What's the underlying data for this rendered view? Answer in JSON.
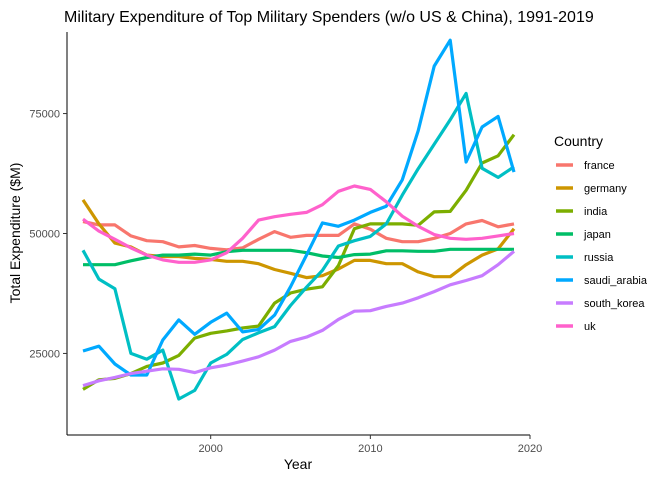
{
  "chart_data": {
    "type": "line",
    "title": "Military Expenditure of Top Military Spenders (w/o US & China), 1991-2019",
    "xlabel": "Year",
    "ylabel": "Total Expenditure ($M)",
    "xlim": [
      1991,
      2020
    ],
    "ylim": [
      8000,
      92000
    ],
    "xticks": [
      2000,
      2010,
      2020
    ],
    "yticks": [
      25000,
      50000,
      75000
    ],
    "grid": false,
    "legend": {
      "title": "Country",
      "position": "right"
    },
    "x": [
      1992,
      1993,
      1994,
      1995,
      1996,
      1997,
      1998,
      1999,
      2000,
      2001,
      2002,
      2003,
      2004,
      2005,
      2006,
      2007,
      2008,
      2009,
      2010,
      2011,
      2012,
      2013,
      2014,
      2015,
      2016,
      2017,
      2018,
      2019
    ],
    "series": [
      {
        "name": "france",
        "color": "#F8766D",
        "values": [
          52500,
          51800,
          51800,
          49500,
          48500,
          48300,
          47200,
          47500,
          46900,
          46600,
          47000,
          48800,
          50400,
          49200,
          49600,
          49600,
          49600,
          52000,
          50900,
          49000,
          48300,
          48300,
          49000,
          50000,
          52000,
          52700,
          51400,
          52000
        ]
      },
      {
        "name": "germany",
        "color": "#CD9600",
        "values": [
          57000,
          52000,
          48000,
          47200,
          45500,
          45200,
          45200,
          44800,
          44600,
          44200,
          44200,
          43700,
          42500,
          41700,
          40800,
          41200,
          42600,
          44400,
          44400,
          43700,
          43700,
          42000,
          41000,
          41000,
          43500,
          45500,
          46800,
          51000
        ]
      },
      {
        "name": "india",
        "color": "#7CAE00",
        "values": [
          17500,
          19500,
          19800,
          20800,
          22300,
          23000,
          24600,
          28200,
          29200,
          29700,
          30300,
          30700,
          35500,
          37600,
          38400,
          38900,
          43300,
          51000,
          52000,
          52000,
          52000,
          51700,
          54500,
          54600,
          59000,
          64700,
          66200,
          70600
        ]
      },
      {
        "name": "japan",
        "color": "#00BE67",
        "values": [
          43500,
          43500,
          43500,
          44300,
          45000,
          45500,
          45500,
          45700,
          45500,
          46200,
          46500,
          46500,
          46500,
          46500,
          46000,
          45300,
          45000,
          45600,
          45700,
          46400,
          46400,
          46300,
          46300,
          46700,
          46700,
          46700,
          46700,
          46700
        ]
      },
      {
        "name": "russia",
        "color": "#00BFC4",
        "values": [
          46500,
          40500,
          38500,
          25000,
          23800,
          25700,
          15500,
          17300,
          23000,
          24800,
          27900,
          29300,
          30600,
          35000,
          38800,
          42300,
          47400,
          48500,
          49400,
          52000,
          58000,
          63500,
          68600,
          73700,
          79200,
          63600,
          61700,
          63900
        ]
      },
      {
        "name": "saudi_arabia",
        "color": "#00A9FF",
        "values": [
          25500,
          26500,
          22800,
          20500,
          20500,
          27800,
          32000,
          29000,
          31500,
          33400,
          29500,
          30000,
          33000,
          38900,
          45500,
          52200,
          51500,
          52800,
          54400,
          55700,
          61200,
          71400,
          84900,
          90300,
          64900,
          72200,
          74400,
          62800
        ]
      },
      {
        "name": "south_korea",
        "color": "#C77CFF",
        "values": [
          18300,
          19300,
          20000,
          20800,
          21300,
          21800,
          21700,
          21000,
          22000,
          22600,
          23400,
          24300,
          25700,
          27500,
          28400,
          29800,
          32100,
          33800,
          33900,
          34800,
          35500,
          36600,
          37900,
          39300,
          40200,
          41200,
          43500,
          46300
        ]
      },
      {
        "name": "uk",
        "color": "#FF61CC",
        "values": [
          53000,
          50500,
          48800,
          47000,
          45500,
          44500,
          44000,
          44000,
          44500,
          46000,
          49000,
          52800,
          53500,
          54000,
          54400,
          56000,
          58800,
          59900,
          59200,
          56600,
          53600,
          51500,
          49800,
          49000,
          48800,
          49000,
          49500,
          50000
        ]
      }
    ]
  }
}
